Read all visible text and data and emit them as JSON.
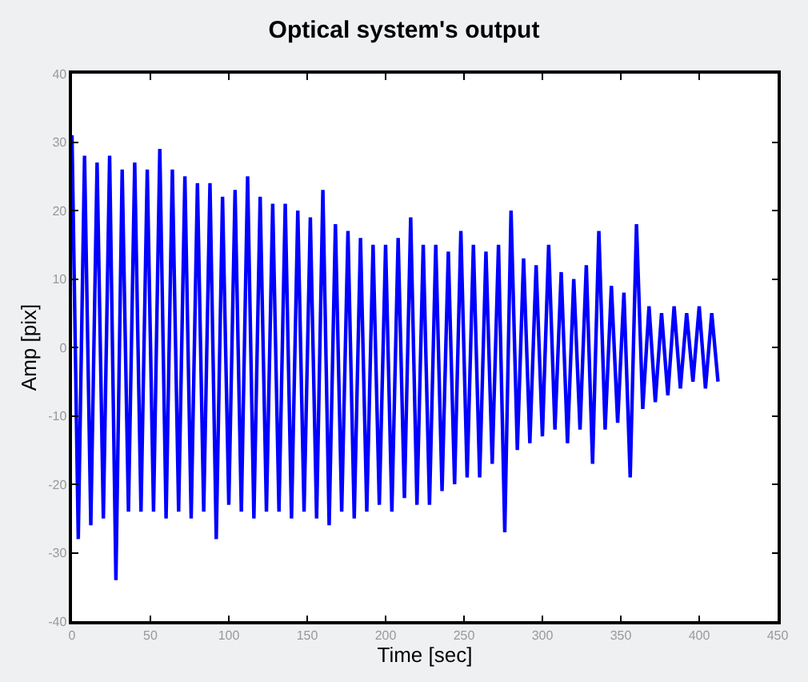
{
  "chart_data": {
    "type": "line",
    "title": "Optical system's output",
    "xlabel": "Time [sec]",
    "ylabel": "Amp [pix]",
    "xlim": [
      0,
      450
    ],
    "xticks": [
      0,
      50,
      100,
      150,
      200,
      250,
      300,
      350,
      400,
      450
    ],
    "ylim": [
      -40,
      40
    ],
    "yticks": [
      -40,
      -30,
      -20,
      -10,
      0,
      10,
      20,
      30,
      40
    ],
    "marker": "none",
    "line_style": "solid",
    "series": [
      {
        "color": "#0000ff",
        "x": [
          0,
          4,
          8,
          12,
          16,
          20,
          24,
          28,
          32,
          36,
          40,
          44,
          48,
          52,
          56,
          60,
          64,
          68,
          72,
          76,
          80,
          84,
          88,
          92,
          96,
          100,
          104,
          108,
          112,
          116,
          120,
          124,
          128,
          132,
          136,
          140,
          144,
          148,
          152,
          156,
          160,
          164,
          168,
          172,
          176,
          180,
          184,
          188,
          192,
          196,
          200,
          204,
          208,
          212,
          216,
          220,
          224,
          228,
          232,
          236,
          240,
          244,
          248,
          252,
          256,
          260,
          264,
          268,
          272,
          276,
          280,
          284,
          288,
          292,
          296,
          300,
          304,
          308,
          312,
          316,
          320,
          324,
          328,
          332,
          336,
          340,
          344,
          348,
          352,
          356,
          360,
          364,
          368,
          372,
          376,
          380,
          384,
          388,
          392,
          396,
          400,
          404,
          408,
          412
        ],
        "values": [
          31,
          -28,
          28,
          -26,
          27,
          -25,
          28,
          -34,
          26,
          -24,
          27,
          -24,
          26,
          -24,
          29,
          -25,
          26,
          -24,
          25,
          -25,
          24,
          -24,
          24,
          -28,
          22,
          -23,
          23,
          -24,
          25,
          -25,
          22,
          -24,
          21,
          -24,
          21,
          -25,
          20,
          -24,
          19,
          -25,
          23,
          -26,
          18,
          -24,
          17,
          -25,
          16,
          -24,
          15,
          -23,
          15,
          -24,
          16,
          -22,
          19,
          -23,
          15,
          -23,
          15,
          -21,
          14,
          -20,
          17,
          -19,
          15,
          -19,
          14,
          -17,
          15,
          -27,
          20,
          -15,
          13,
          -14,
          12,
          -13,
          15,
          -12,
          11,
          -14,
          10,
          -12,
          12,
          -17,
          17,
          -12,
          9,
          -11,
          8,
          -19,
          18,
          -9,
          6,
          -8,
          5,
          -7,
          6,
          -6,
          5,
          -5,
          6,
          -6,
          5,
          -5
        ]
      }
    ]
  }
}
